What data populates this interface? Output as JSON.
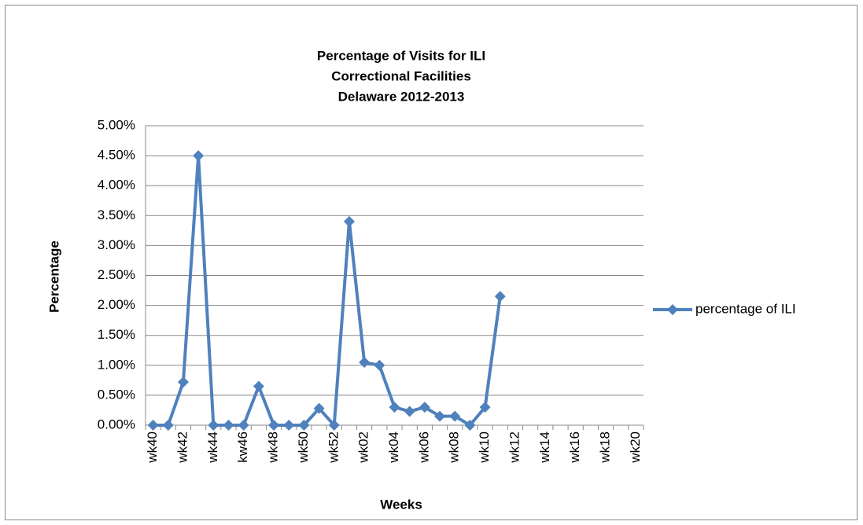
{
  "chart_data": {
    "type": "line",
    "title": [
      "Percentage of Visits for ILI",
      "Correctional Facilities",
      "Delaware 2012-2013"
    ],
    "x_label": "Weeks",
    "y_label": "Percentage",
    "categories": [
      "wk40",
      null,
      "wk42",
      null,
      "wk44",
      null,
      "kw46",
      null,
      "wk48",
      null,
      "wk50",
      null,
      "wk52",
      null,
      "wk02",
      null,
      "wk04",
      null,
      "wk06",
      null,
      "wk08",
      null,
      "wk10",
      null,
      "wk12",
      null,
      "wk14",
      null,
      "wk16",
      null,
      "wk18",
      null,
      "wk20"
    ],
    "series": [
      {
        "name": "percentage of ILI",
        "color": "#4f81bd",
        "values": [
          0,
          0,
          0.72,
          4.5,
          0,
          0,
          0,
          0.65,
          0,
          0,
          0,
          0.28,
          0,
          3.4,
          1.05,
          1.0,
          0.3,
          0.23,
          0.3,
          0.15,
          0.15,
          0,
          0.3,
          2.15,
          null,
          null,
          null,
          null,
          null,
          null,
          null,
          null,
          null
        ]
      }
    ],
    "ylim": [
      0,
      5
    ],
    "yticks": [
      {
        "value": 0,
        "label": "0.00%"
      },
      {
        "value": 0.5,
        "label": "0.50%"
      },
      {
        "value": 1,
        "label": "1.00%"
      },
      {
        "value": 1.5,
        "label": "1.50%"
      },
      {
        "value": 2,
        "label": "2.00%"
      },
      {
        "value": 2.5,
        "label": "2.50%"
      },
      {
        "value": 3,
        "label": "3.00%"
      },
      {
        "value": 3.5,
        "label": "3.50%"
      },
      {
        "value": 4,
        "label": "4.00%"
      },
      {
        "value": 4.5,
        "label": "4.50%"
      },
      {
        "value": 5,
        "label": "5.00%"
      }
    ],
    "grid": true,
    "legend": "right"
  }
}
